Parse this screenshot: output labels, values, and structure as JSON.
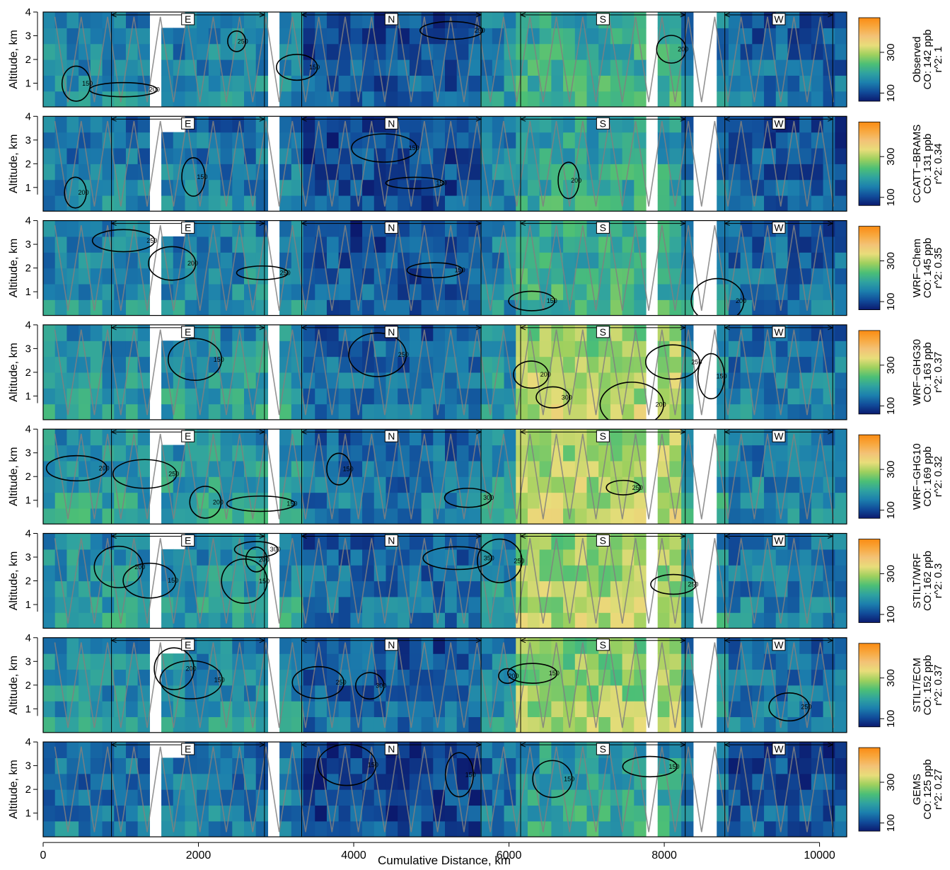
{
  "chart_data": {
    "type": "heatmap",
    "xlabel": "Cumulative Distance, km",
    "ylabel": "Altitude, km",
    "xlim": [
      0,
      10350
    ],
    "ylim": [
      0,
      4
    ],
    "xticks": [
      0,
      2000,
      4000,
      6000,
      8000,
      10000
    ],
    "yticks": [
      1,
      2,
      3,
      4
    ],
    "colorbar_ticks": [
      100,
      300
    ],
    "colorbar_range": [
      60,
      470
    ],
    "colormap": [
      "#0b1a6e",
      "#114c9a",
      "#1c7fad",
      "#2fa2a0",
      "#4cbf76",
      "#9ed05e",
      "#e8dd7a",
      "#f3c276",
      "#f8a83f",
      "#fb8b12"
    ],
    "contour_line_color": "#000000",
    "flight_track_color": "#808080",
    "regions": [
      {
        "label": "E",
        "x_start": 880,
        "x_end": 2850
      },
      {
        "label": "N",
        "x_start": 3330,
        "x_end": 5640
      },
      {
        "label": "S",
        "x_start": 6150,
        "x_end": 8270
      },
      {
        "label": "W",
        "x_start": 8780,
        "x_end": 10170
      }
    ],
    "panels": [
      {
        "model": "Observed",
        "co_text": "CO: 142 ppb",
        "r2_text": "r^2: 1",
        "mean_co_ppb": 142,
        "r2": 1,
        "contour_labels": [
          "150",
          "200",
          "250"
        ]
      },
      {
        "model": "CCATT−BRAMS",
        "co_text": "CO: 131 ppb",
        "r2_text": "r^2: 0.34",
        "mean_co_ppb": 131,
        "r2": 0.34,
        "contour_labels": [
          "150",
          "200"
        ]
      },
      {
        "model": "WRF−Chem",
        "co_text": "CO: 145 ppb",
        "r2_text": "r^2: 0.35",
        "mean_co_ppb": 145,
        "r2": 0.35,
        "contour_labels": [
          "150",
          "200",
          "250"
        ]
      },
      {
        "model": "WRF−GHG30",
        "co_text": "CO: 163 ppb",
        "r2_text": "r^2: 0.37",
        "mean_co_ppb": 163,
        "r2": 0.37,
        "contour_labels": [
          "150",
          "200",
          "250",
          "300"
        ]
      },
      {
        "model": "WRF−GHG10",
        "co_text": "CO: 169 ppb",
        "r2_text": "r^2: 0.32",
        "mean_co_ppb": 169,
        "r2": 0.32,
        "contour_labels": [
          "150",
          "200",
          "250",
          "300"
        ]
      },
      {
        "model": "STILT/WRF",
        "co_text": "CO: 162 ppb",
        "r2_text": "r^2: 0.3",
        "mean_co_ppb": 162,
        "r2": 0.3,
        "contour_labels": [
          "150",
          "200",
          "250",
          "300",
          "350"
        ]
      },
      {
        "model": "STILT/ECM",
        "co_text": "CO: 152 ppb",
        "r2_text": "r^2: 0.37",
        "mean_co_ppb": 152,
        "r2": 0.37,
        "contour_labels": [
          "150",
          "200",
          "250",
          "300"
        ]
      },
      {
        "model": "GEMS",
        "co_text": "CO: 125 ppb",
        "r2_text": "r^2: 0.27",
        "mean_co_ppb": 125,
        "r2": 0.27,
        "contour_labels": [
          "150"
        ]
      }
    ]
  }
}
